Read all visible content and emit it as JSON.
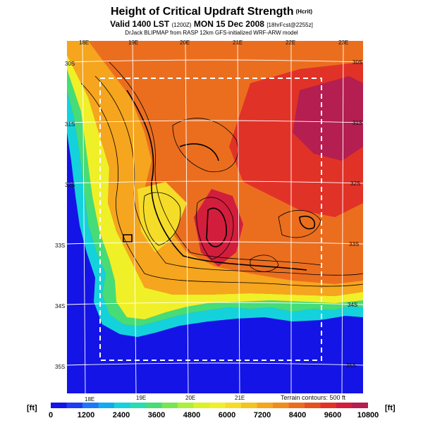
{
  "title": "Height of Critical Updraft Strength",
  "title_unit": "(Hcrit)",
  "subtitle": "Valid 1400 LST",
  "subtitle_small": "(1200Z)",
  "subtitle_date": "MON 15 Dec 2008",
  "subtitle_tail": "[18hrFcst@2255z]",
  "credit": "DrJack BLIPMAP from RASP 12km GFS-initialized WRF-ARW model",
  "terrain_note": "Terrain contours: 500 ft",
  "unit": "[ft]",
  "longitude_labels_top": [
    "18E",
    "19E",
    "20E",
    "21E",
    "22E",
    "23E"
  ],
  "longitude_labels_bottom": [
    "18E",
    "19E",
    "20E",
    "21E"
  ],
  "latitude_labels_left": [
    "30S",
    "31S",
    "32S",
    "33S",
    "34S",
    "35S"
  ],
  "latitude_labels_right": [
    "30S",
    "31S",
    "32S",
    "33S",
    "34S",
    "35S"
  ],
  "colorbar": {
    "labels": [
      "0",
      "1200",
      "2400",
      "3600",
      "4800",
      "6000",
      "7200",
      "8400",
      "9600",
      "10800"
    ],
    "colors": [
      "#1414e6",
      "#1e3cf0",
      "#1e78f5",
      "#14aaf0",
      "#14d2dc",
      "#28dcb4",
      "#46dc78",
      "#78e650",
      "#aaf03c",
      "#dcf028",
      "#f0f028",
      "#f5dc28",
      "#f5c31e",
      "#f5a51e",
      "#f08c1e",
      "#eb6e1e",
      "#e6501e",
      "#e13228",
      "#d21e3c",
      "#b41e50"
    ]
  }
}
